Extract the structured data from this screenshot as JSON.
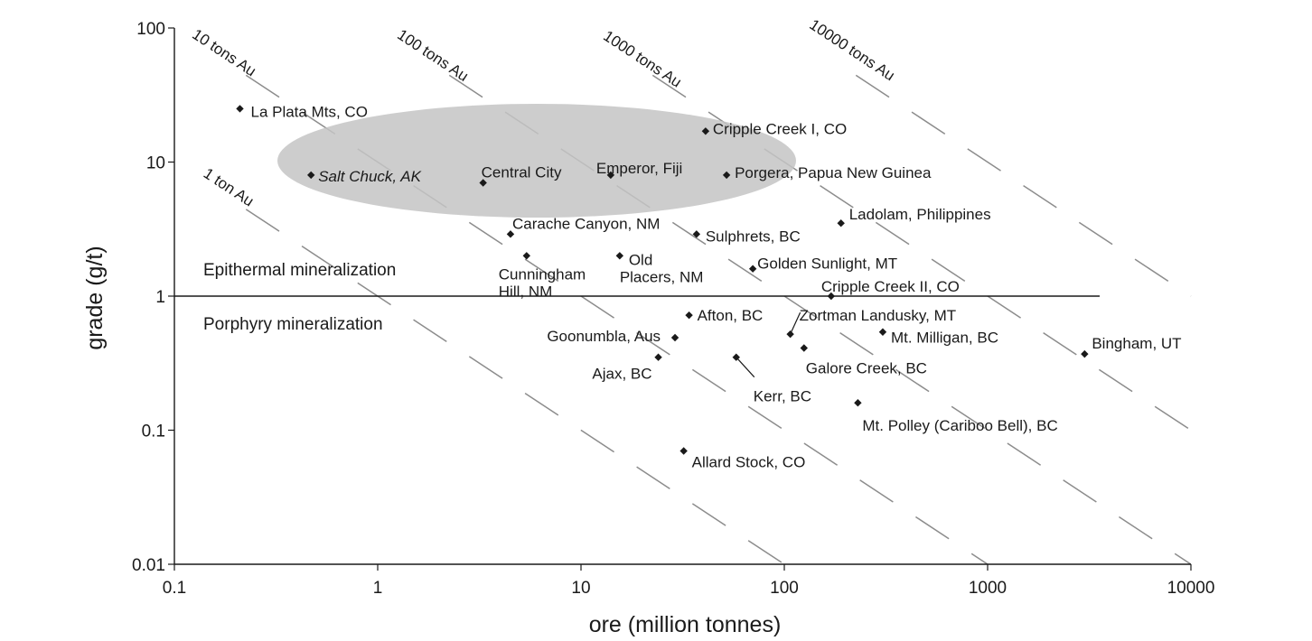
{
  "chart_data": {
    "type": "scatter",
    "xscale": "log",
    "yscale": "log",
    "xlim": [
      0.1,
      10000
    ],
    "ylim": [
      0.01,
      100
    ],
    "xlabel": "ore (million tonnes)",
    "ylabel": "grade (g/t)",
    "xticks": [
      "0.1",
      "1",
      "10",
      "100",
      "1000",
      "10000"
    ],
    "yticks": [
      "0.01",
      "0.1",
      "1",
      "10",
      "100"
    ],
    "points": [
      {
        "name": "La Plata Mts, CO",
        "x": 0.21,
        "y": 25
      },
      {
        "name": "Salt Chuck, AK",
        "x": 0.47,
        "y": 8,
        "italic": true
      },
      {
        "name": "Central City",
        "x": 3.3,
        "y": 7
      },
      {
        "name": "Emperor, Fiji",
        "x": 14,
        "y": 8
      },
      {
        "name": "Cripple Creek I, CO",
        "x": 41,
        "y": 17
      },
      {
        "name": "Porgera, Papua New Guinea",
        "x": 52,
        "y": 8
      },
      {
        "name": "Carache Canyon, NM",
        "x": 4.5,
        "y": 2.9
      },
      {
        "name": "Cunningham Hill, NM",
        "x": 5.4,
        "y": 2.0
      },
      {
        "name": "Old Placers, NM",
        "x": 15.5,
        "y": 2.0
      },
      {
        "name": "Sulphrets, BC",
        "x": 37,
        "y": 2.9
      },
      {
        "name": "Ladolam, Philippines",
        "x": 190,
        "y": 3.5
      },
      {
        "name": "Golden Sunlight, MT",
        "x": 70,
        "y": 1.6
      },
      {
        "name": "Cripple Creek II, CO",
        "x": 170,
        "y": 1.0
      },
      {
        "name": "Afton, BC",
        "x": 34,
        "y": 0.72
      },
      {
        "name": "Goonumbla, Aus",
        "x": 29,
        "y": 0.49
      },
      {
        "name": "Zortman Landusky, MT",
        "x": 107,
        "y": 0.52
      },
      {
        "name": "Mt. Milligan, BC",
        "x": 305,
        "y": 0.54
      },
      {
        "name": "Galore Creek, BC",
        "x": 125,
        "y": 0.41
      },
      {
        "name": "Ajax, BC",
        "x": 24,
        "y": 0.35
      },
      {
        "name": "Kerr, BC",
        "x": 58,
        "y": 0.35
      },
      {
        "name": "Bingham, UT",
        "x": 3000,
        "y": 0.37
      },
      {
        "name": "Mt. Polley (Cariboo Bell), BC",
        "x": 230,
        "y": 0.16
      },
      {
        "name": "Allard Stock, CO",
        "x": 32,
        "y": 0.07
      }
    ],
    "contours": [
      {
        "label": "1 ton Au",
        "tons": 1
      },
      {
        "label": "10 tons Au",
        "tons": 10
      },
      {
        "label": "100 tons Au",
        "tons": 100
      },
      {
        "label": "1000 tons Au",
        "tons": 1000
      },
      {
        "label": "10000 tons Au",
        "tons": 10000
      }
    ],
    "regions": {
      "upper": "Epithermal mineralization",
      "lower": "Porphyry mineralization",
      "boundary_grade": 1
    }
  }
}
